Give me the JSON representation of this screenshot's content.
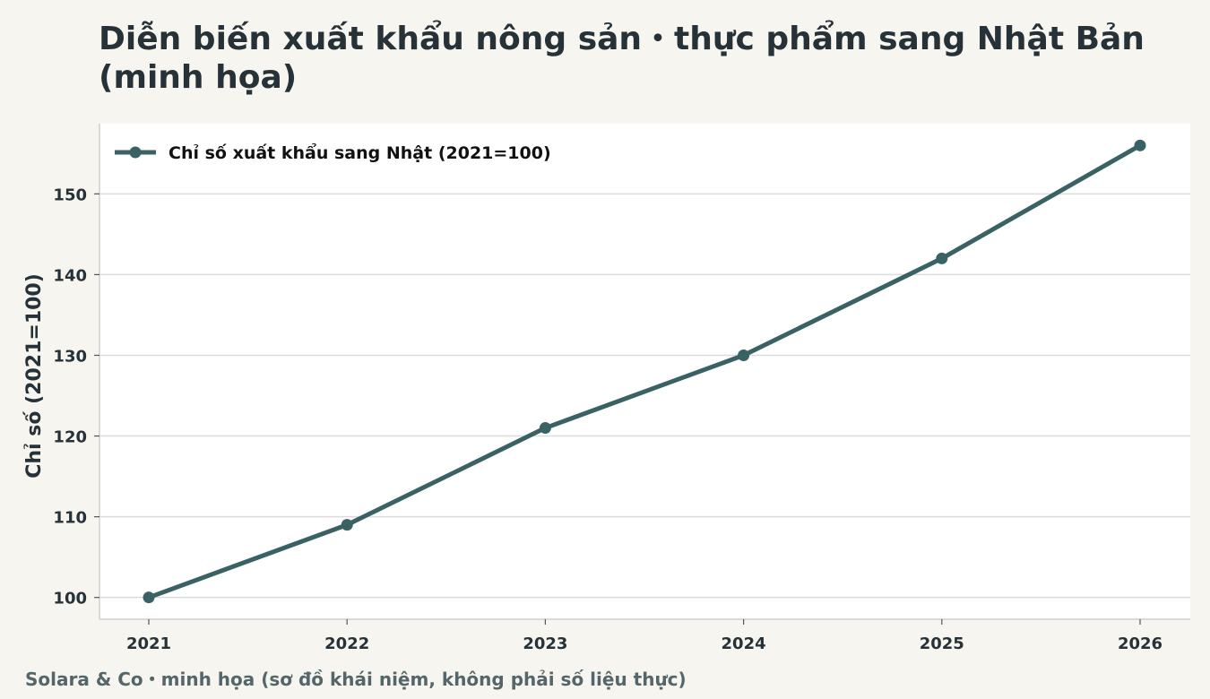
{
  "title": "Diễn biến xuất khẩu nông sản・thực phẩm sang Nhật Bản (minh họa)",
  "note": "Solara & Co・minh họa (sơ đồ khái niệm, không phải số liệu thực)",
  "chart_data": {
    "type": "line",
    "title": "Diễn biến xuất khẩu nông sản・thực phẩm sang Nhật Bản (minh họa)",
    "xlabel": "",
    "ylabel": "Chỉ số (2021=100)",
    "x": [
      "2021",
      "2022",
      "2023",
      "2024",
      "2025",
      "2026"
    ],
    "series": [
      {
        "name": "Chỉ số xuất khẩu sang Nhật (2021=100)",
        "values": [
          100,
          109,
          121,
          130,
          142,
          156
        ]
      }
    ],
    "yticks": [
      100,
      110,
      120,
      130,
      140,
      150
    ],
    "ylim": [
      97.3,
      158.7
    ],
    "grid": true,
    "legend": "top-left",
    "colors": {
      "line": "#3a6265",
      "plot_bg": "#ffffff",
      "page_bg": "#f6f5f0",
      "grid": "#dcdcdc"
    }
  }
}
